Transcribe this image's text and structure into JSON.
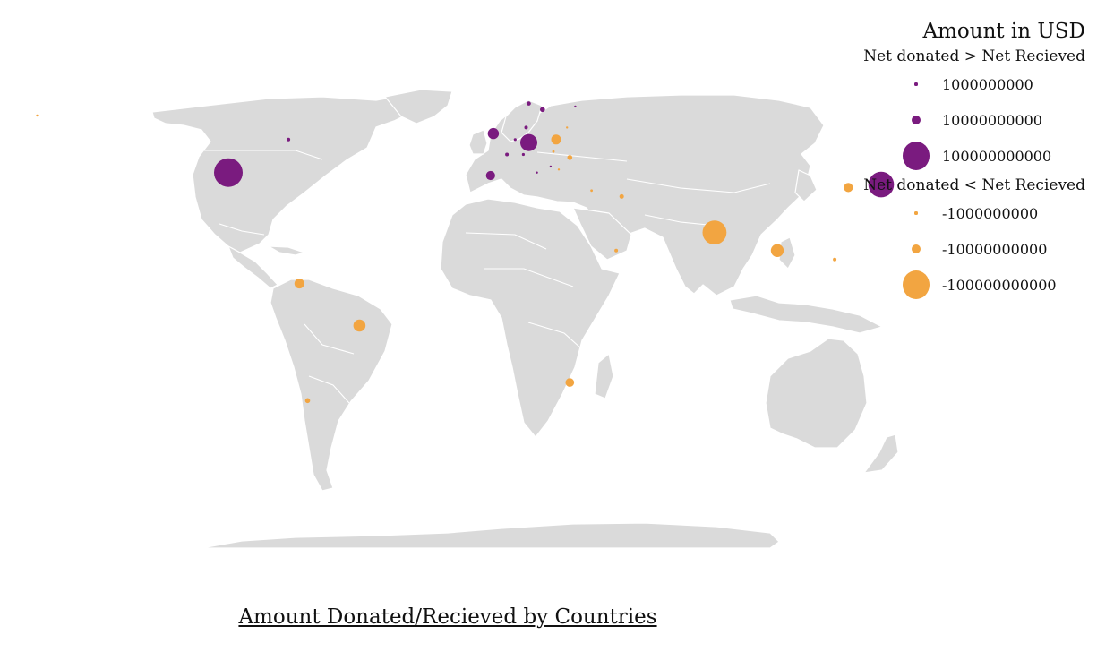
{
  "title": "Amount Donated/Recieved by Countries",
  "legend": {
    "title": "Amount in USD",
    "groups": [
      {
        "title": "Net donated > Net Recieved",
        "color": "#7a1b7f",
        "items": [
          {
            "label": "1000000000",
            "value": 1000000000
          },
          {
            "label": "10000000000",
            "value": 10000000000
          },
          {
            "label": "100000000000",
            "value": 100000000000
          }
        ]
      },
      {
        "title": "Net donated < Net Recieved",
        "color": "#f2a541",
        "items": [
          {
            "label": "-1000000000",
            "value": -1000000000
          },
          {
            "label": "-10000000000",
            "value": -10000000000
          },
          {
            "label": "-100000000000",
            "value": -100000000000
          }
        ]
      }
    ]
  },
  "colors": {
    "donor": "#7a1b7f",
    "recipient": "#f2a541",
    "land": "#dadada"
  },
  "chart_data": {
    "type": "scatter",
    "x": "longitude",
    "y": "latitude",
    "size": "net amount (USD)",
    "points": [
      {
        "lon": -100,
        "lat": 41,
        "value": 100000000000
      },
      {
        "lon": -78,
        "lat": 52,
        "value": 1500000000
      },
      {
        "lon": 139,
        "lat": 37,
        "value": 80000000000
      },
      {
        "lon": -3,
        "lat": 54,
        "value": 15000000000
      },
      {
        "lon": 10,
        "lat": 51,
        "value": 35000000000
      },
      {
        "lon": -4,
        "lat": 40,
        "value": 10000000000
      },
      {
        "lon": 15,
        "lat": 62,
        "value": 3000000000
      },
      {
        "lon": 10,
        "lat": 64,
        "value": 2000000000
      },
      {
        "lon": 27,
        "lat": 63,
        "value": 500000000
      },
      {
        "lon": 9,
        "lat": 56,
        "value": 1500000000
      },
      {
        "lon": 5,
        "lat": 52,
        "value": 1000000000
      },
      {
        "lon": 2,
        "lat": 47,
        "value": 1500000000
      },
      {
        "lon": 8,
        "lat": 47,
        "value": 1000000000
      },
      {
        "lon": 18,
        "lat": 43,
        "value": 500000000
      },
      {
        "lon": 13,
        "lat": 41,
        "value": 500000000
      },
      {
        "lon": 78,
        "lat": 21,
        "value": -70000000000
      },
      {
        "lon": 101,
        "lat": 15,
        "value": -20000000000
      },
      {
        "lon": 127,
        "lat": 36,
        "value": -10000000000
      },
      {
        "lon": 122,
        "lat": 12,
        "value": -1500000000
      },
      {
        "lon": -74,
        "lat": 4,
        "value": -12000000000
      },
      {
        "lon": -52,
        "lat": -10,
        "value": -18000000000
      },
      {
        "lon": 25,
        "lat": -29,
        "value": -9000000000
      },
      {
        "lon": -71,
        "lat": -35,
        "value": -3000000000
      },
      {
        "lon": 20,
        "lat": 52,
        "value": -12000000000
      },
      {
        "lon": 25,
        "lat": 46,
        "value": -3000000000
      },
      {
        "lon": 44,
        "lat": 33,
        "value": -2500000000
      },
      {
        "lon": 42,
        "lat": 15,
        "value": -1500000000
      },
      {
        "lon": 33,
        "lat": 35,
        "value": -800000000
      },
      {
        "lon": 19,
        "lat": 48,
        "value": -800000000
      },
      {
        "lon": 24,
        "lat": 56,
        "value": -500000000
      },
      {
        "lon": 21,
        "lat": 42,
        "value": -500000000
      },
      {
        "lon": -170,
        "lat": 60,
        "value": -600000000
      }
    ]
  }
}
